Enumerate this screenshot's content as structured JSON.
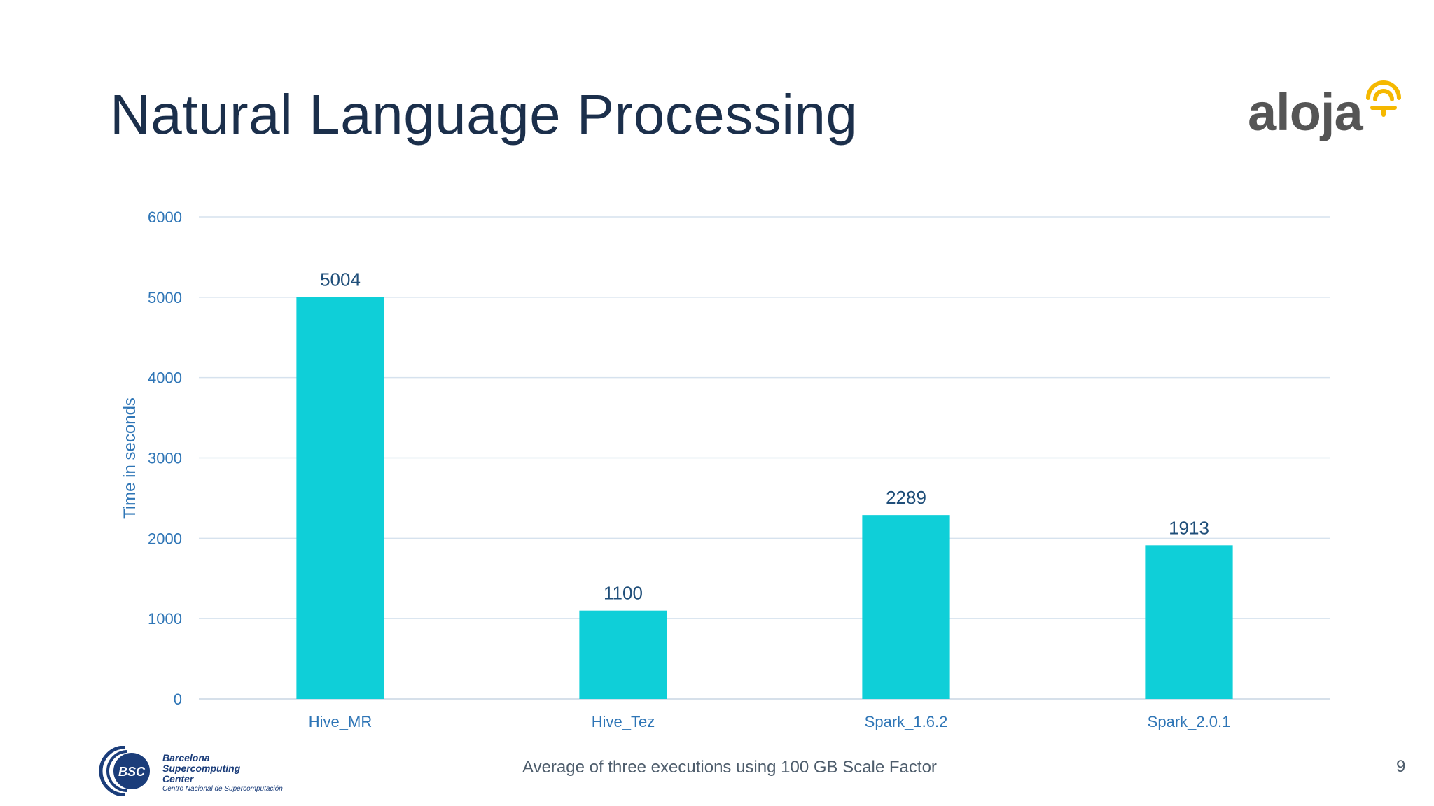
{
  "slide": {
    "title": "Natural Language Processing",
    "footer_note": "Average of three executions using 100 GB Scale Factor",
    "page_number": "9",
    "logos": {
      "top_right": {
        "text": "aloja",
        "icon": "aloja-wifi-icon",
        "accent": "#f5b800"
      },
      "bottom_left": {
        "badge": "BSC",
        "name": "Barcelona Supercomputing Center",
        "subtitle": "Centro Nacional de Supercomputación",
        "color": "#1b3d7a"
      }
    }
  },
  "chart_data": {
    "type": "bar",
    "categories": [
      "Hive_MR",
      "Hive_Tez",
      "Spark_1.6.2",
      "Spark_2.0.1"
    ],
    "values": [
      5004,
      1100,
      2289,
      1913
    ],
    "data_labels": [
      "5004",
      "1100",
      "2289",
      "1913"
    ],
    "xlabel": "",
    "ylabel": "Time in seconds",
    "ylim": [
      0,
      6000
    ],
    "yticks": [
      0,
      1000,
      2000,
      3000,
      4000,
      5000,
      6000
    ],
    "grid": true,
    "legend": "none",
    "bar_color": "#0fcfd8",
    "label_color": "#1f4e79",
    "tick_color": "#2e75b6"
  }
}
